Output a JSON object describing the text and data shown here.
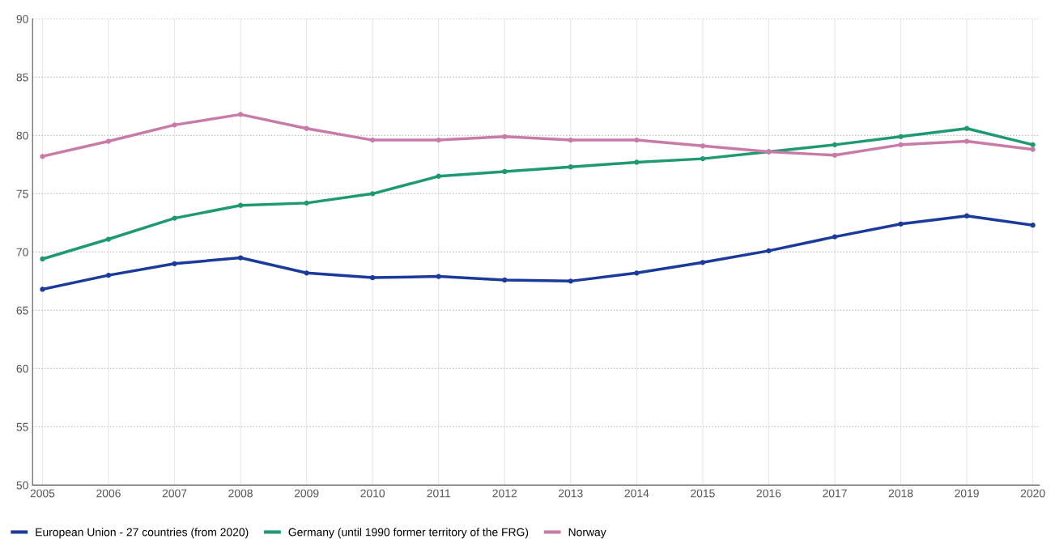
{
  "chart_data": {
    "type": "line",
    "x": [
      2005,
      2006,
      2007,
      2008,
      2009,
      2010,
      2011,
      2012,
      2013,
      2014,
      2015,
      2016,
      2017,
      2018,
      2019,
      2020
    ],
    "series": [
      {
        "name": "European Union - 27 countries (from 2020)",
        "color": "#1a3a9c",
        "values": [
          66.8,
          68.0,
          69.0,
          69.5,
          68.2,
          67.8,
          67.9,
          67.6,
          67.5,
          68.2,
          69.1,
          70.1,
          71.3,
          72.4,
          73.1,
          72.3
        ]
      },
      {
        "name": "Germany (until 1990 former territory of the FRG)",
        "color": "#1e9a6e",
        "values": [
          69.4,
          71.1,
          72.9,
          74.0,
          74.2,
          75.0,
          76.5,
          76.9,
          77.3,
          77.7,
          78.0,
          78.6,
          79.2,
          79.9,
          80.6,
          79.2
        ]
      },
      {
        "name": "Norway",
        "color": "#c97ba8",
        "values": [
          78.2,
          79.5,
          80.9,
          81.8,
          80.6,
          79.6,
          79.6,
          79.9,
          79.6,
          79.6,
          79.1,
          78.6,
          78.3,
          79.2,
          79.5,
          78.8
        ]
      }
    ],
    "xlim": [
      2004.85,
      2020.1
    ],
    "xticks": [
      2005,
      2006,
      2007,
      2008,
      2009,
      2010,
      2011,
      2012,
      2013,
      2014,
      2015,
      2016,
      2017,
      2018,
      2019,
      2020
    ],
    "ylim": [
      50,
      90
    ],
    "yticks": [
      50,
      55,
      60,
      65,
      70,
      75,
      80,
      85,
      90
    ],
    "grid": true,
    "legend": "bottom",
    "marker": "circle",
    "line_style": "solid"
  }
}
